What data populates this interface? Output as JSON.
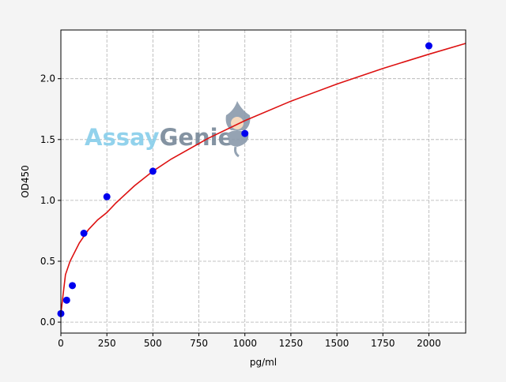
{
  "chart_data": {
    "type": "scatter",
    "title": "",
    "xlabel": "pg/ml",
    "ylabel": "OD450",
    "xlim": [
      0,
      2200
    ],
    "ylim": [
      -0.09,
      2.4
    ],
    "xticks": [
      0,
      250,
      500,
      750,
      1000,
      1250,
      1500,
      1750,
      2000
    ],
    "yticks": [
      0.0,
      0.5,
      1.0,
      1.5,
      2.0
    ],
    "xtick_labels": [
      "0",
      "250",
      "500",
      "750",
      "1000",
      "1250",
      "1500",
      "1750",
      "2000"
    ],
    "ytick_labels": [
      "0.0",
      "0.5",
      "1.0",
      "1.5",
      "2.0"
    ],
    "grid": true,
    "points": {
      "color": "#0000ee",
      "x": [
        0,
        31.25,
        62.5,
        125,
        250,
        500,
        1000,
        2000
      ],
      "y": [
        0.07,
        0.18,
        0.3,
        0.73,
        1.03,
        1.24,
        1.55,
        2.27
      ]
    },
    "fit_curve": {
      "color": "#dd1111",
      "x": [
        0,
        25,
        50,
        100,
        150,
        200,
        250,
        300,
        400,
        500,
        600,
        800,
        1000,
        1250,
        1500,
        1750,
        2000,
        2200
      ],
      "y": [
        0.07,
        0.39,
        0.5,
        0.65,
        0.76,
        0.84,
        0.9,
        0.98,
        1.12,
        1.24,
        1.34,
        1.51,
        1.655,
        1.815,
        1.956,
        2.084,
        2.201,
        2.29
      ]
    }
  },
  "watermark": {
    "text_a": "Assay",
    "text_b": "Genie",
    "color_a": "#87ceeb",
    "color_b": "#778899"
  }
}
